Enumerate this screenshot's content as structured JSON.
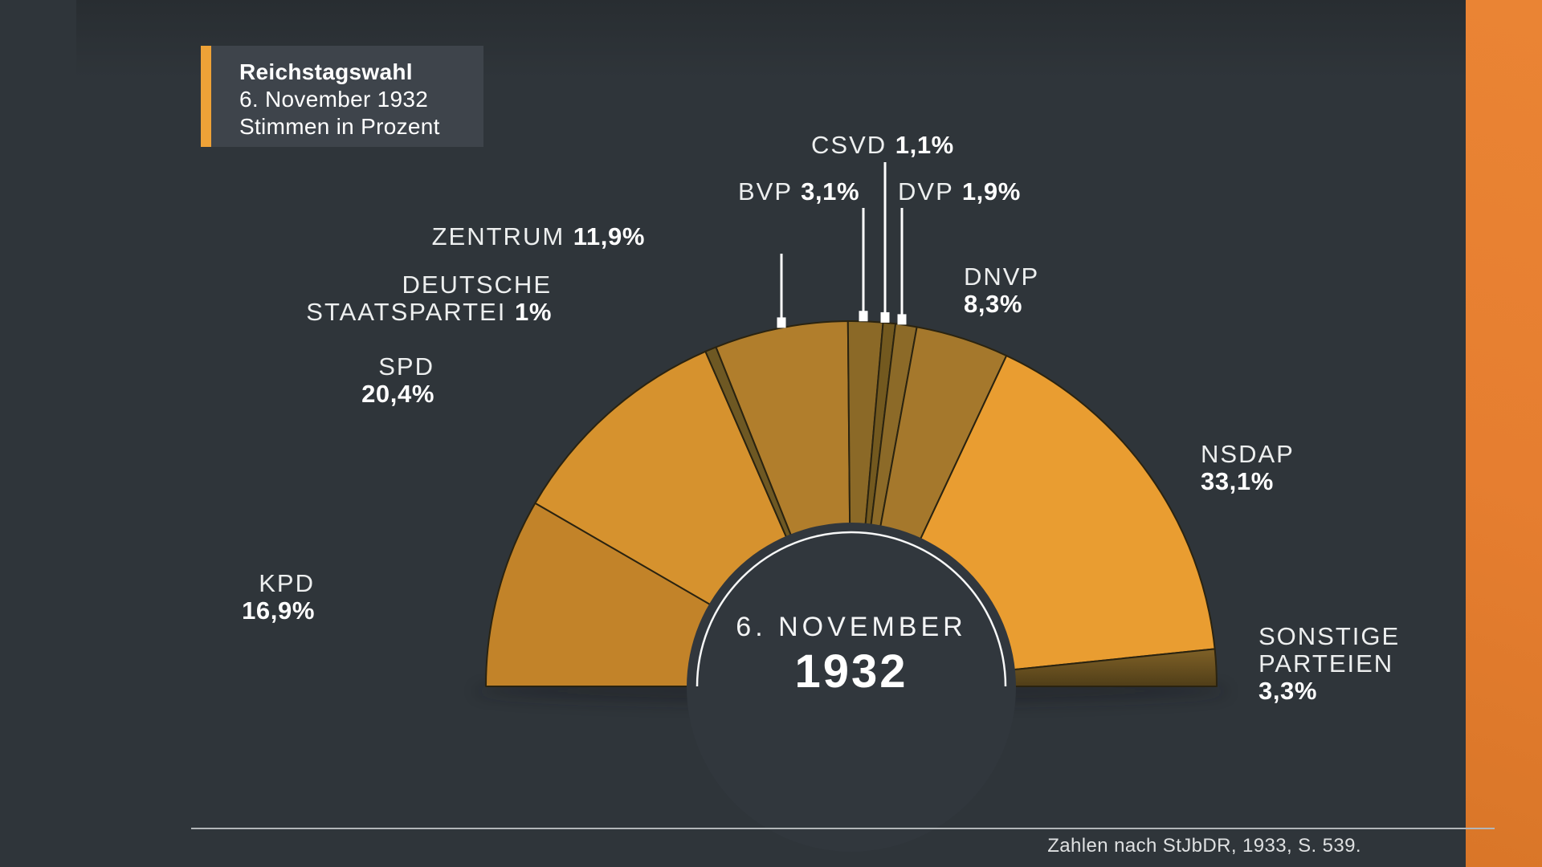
{
  "title_box": {
    "title": "Reichstagswahl",
    "subtitle_date": "6. November 1932",
    "subtitle_unit": "Stimmen in Prozent"
  },
  "source": "Zahlen nach StJbDR, 1933, S. 539.",
  "colors": {
    "background": "#2F353A",
    "side_border_orange": "#E67E30",
    "title_accent_orange": "#EEA237",
    "title_box_bg": "#3E444B",
    "slice_outline": "#2A2310",
    "ring_white": "#F7F8F8"
  },
  "chart_data": {
    "type": "pie",
    "variant": "half-donut-semicircle-180deg",
    "title": "Reichstagswahl 6. November 1932 — Stimmen in Prozent",
    "unit": "%",
    "legend_position": "around-arc-with-leader-lines",
    "center_label": {
      "line1": "6. NOVEMBER",
      "line2": "1932"
    },
    "series": [
      {
        "party": "KPD",
        "name_lines": [
          "KPD"
        ],
        "value": 16.9,
        "value_label": "16,9%",
        "color": "#C28329"
      },
      {
        "party": "SPD",
        "name_lines": [
          "SPD"
        ],
        "value": 20.4,
        "value_label": "20,4%",
        "color": "#D6922E"
      },
      {
        "party": "DEUTSCHE STAATSPARTEI",
        "name_lines": [
          "DEUTSCHE",
          "STAATSPARTEI"
        ],
        "value": 1.0,
        "value_label": "1%",
        "color": "#6E5823"
      },
      {
        "party": "ZENTRUM",
        "name_lines": [
          "ZENTRUM"
        ],
        "value": 11.9,
        "value_label": "11,9%",
        "color": "#B17E2C"
      },
      {
        "party": "BVP",
        "name_lines": [
          "BVP"
        ],
        "value": 3.1,
        "value_label": "3,1%",
        "color": "#8B6927"
      },
      {
        "party": "CSVD",
        "name_lines": [
          "CSVD"
        ],
        "value": 1.1,
        "value_label": "1,1%",
        "color": "#73591F"
      },
      {
        "party": "DVP",
        "name_lines": [
          "DVP"
        ],
        "value": 1.9,
        "value_label": "1,9%",
        "color": "#8C6A28"
      },
      {
        "party": "DNVP",
        "name_lines": [
          "DNVP"
        ],
        "value": 8.3,
        "value_label": "8,3%",
        "color": "#A5782C"
      },
      {
        "party": "NSDAP",
        "name_lines": [
          "NSDAP"
        ],
        "value": 33.1,
        "value_label": "33,1%",
        "color": "#E99D31"
      },
      {
        "party": "SONSTIGE PARTEIEN",
        "name_lines": [
          "SONSTIGE",
          "PARTEIEN"
        ],
        "value": 3.3,
        "value_label": "3,3%",
        "color": "#6B5220",
        "color_gradient": [
          "#7F6127",
          "#503E18"
        ]
      }
    ]
  }
}
